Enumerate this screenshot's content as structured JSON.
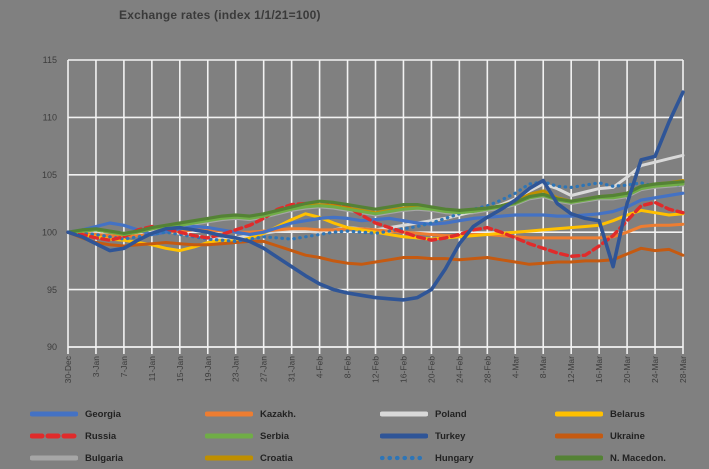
{
  "title": "Exchange rates (index 1/1/21=100)",
  "chart_data": {
    "type": "line",
    "title": "Exchange rates (index 1/1/21=100)",
    "ylim": [
      90,
      115
    ],
    "y_step": 5,
    "y_tick_labels": [
      "90",
      "95",
      "100",
      "105",
      "110",
      "115"
    ],
    "grid": "on",
    "legend_position": "bottom",
    "sample_step_days": 2,
    "tick_step_days": 4,
    "x_tick_labels": [
      "30-Dec",
      "3-Jan",
      "7-Jan",
      "11-Jan",
      "15-Jan",
      "19-Jan",
      "23-Jan",
      "27-Jan",
      "31-Jan",
      "4-Feb",
      "8-Feb",
      "12-Feb",
      "16-Feb",
      "20-Feb",
      "24-Feb",
      "28-Feb",
      "4-Mar",
      "8-Mar",
      "12-Mar",
      "16-Mar",
      "20-Mar",
      "24-Mar",
      "28-Mar"
    ],
    "x_sample_dates": [
      "30-Dec",
      "1-Jan",
      "3-Jan",
      "5-Jan",
      "7-Jan",
      "9-Jan",
      "11-Jan",
      "13-Jan",
      "15-Jan",
      "17-Jan",
      "19-Jan",
      "21-Jan",
      "23-Jan",
      "25-Jan",
      "27-Jan",
      "29-Jan",
      "31-Jan",
      "2-Feb",
      "4-Feb",
      "6-Feb",
      "8-Feb",
      "10-Feb",
      "12-Feb",
      "14-Feb",
      "16-Feb",
      "18-Feb",
      "20-Feb",
      "22-Feb",
      "24-Feb",
      "26-Feb",
      "28-Feb",
      "2-Mar",
      "4-Mar",
      "6-Mar",
      "8-Mar",
      "10-Mar",
      "12-Mar",
      "14-Mar",
      "16-Mar",
      "18-Mar",
      "20-Mar",
      "22-Mar",
      "24-Mar",
      "26-Mar",
      "28-Mar"
    ],
    "series": [
      {
        "name": "Bulgaria",
        "color": "#A6A6A6",
        "style": "solid",
        "width": 3,
        "values": [
          100,
          100.1,
          100.2,
          100,
          99.7,
          99.9,
          100.2,
          100.4,
          100.5,
          100.7,
          100.9,
          101.1,
          101.2,
          101.1,
          101.3,
          101.6,
          101.9,
          102.1,
          102.2,
          102.1,
          101.9,
          101.7,
          101.5,
          101.7,
          101.9,
          102,
          101.9,
          101.7,
          101.6,
          101.7,
          101.9,
          102.1,
          102.4,
          102.9,
          103.1,
          102.7,
          102.5,
          102.7,
          102.9,
          102.9,
          103.1,
          103.7,
          103.9,
          104,
          104.1
        ]
      },
      {
        "name": "Poland",
        "color": "#D9D9D9",
        "style": "solid",
        "width": 3,
        "values": [
          100,
          100,
          99.9,
          99.7,
          99.6,
          99.8,
          100,
          100.1,
          99.9,
          99.7,
          99.5,
          99.4,
          99.5,
          99.7,
          99.9,
          100.1,
          100.2,
          100.1,
          100,
          100.2,
          100.4,
          100.3,
          100.2,
          100.4,
          100.6,
          100.8,
          101,
          101.2,
          101.5,
          101.8,
          102,
          102.4,
          102.9,
          103.6,
          104.2,
          103.8,
          103.2,
          103.5,
          103.8,
          103.9,
          104.8,
          105.8,
          106.1,
          106.4,
          106.7
        ]
      },
      {
        "name": "Kazakh.",
        "color": "#ED7D31",
        "style": "solid",
        "width": 3,
        "values": [
          100,
          99.9,
          99.8,
          99.7,
          99.6,
          99.7,
          99.8,
          100,
          100.1,
          100.2,
          100.2,
          100.1,
          100,
          100,
          100.1,
          100.2,
          100.3,
          100.3,
          100.2,
          100.2,
          100.3,
          100.3,
          100.2,
          100.1,
          100,
          99.9,
          99.8,
          99.7,
          99.7,
          99.8,
          99.8,
          99.7,
          99.6,
          99.5,
          99.5,
          99.5,
          99.5,
          99.5,
          99.5,
          99.6,
          100,
          100.5,
          100.6,
          100.6,
          100.7
        ]
      },
      {
        "name": "Belarus",
        "color": "#FFC000",
        "style": "solid",
        "width": 3,
        "values": [
          100,
          99.8,
          99.6,
          99.4,
          99.3,
          99.1,
          98.9,
          98.6,
          98.4,
          98.7,
          99.1,
          99.3,
          99.2,
          99.5,
          99.9,
          100.5,
          101.1,
          101.6,
          101.3,
          100.8,
          100.4,
          100.2,
          100,
          99.8,
          99.6,
          99.5,
          99.4,
          99.5,
          99.6,
          99.7,
          99.8,
          99.9,
          100,
          100.1,
          100.2,
          100.3,
          100.4,
          100.5,
          100.6,
          101,
          101.5,
          101.9,
          101.7,
          101.5,
          101.6
        ]
      },
      {
        "name": "Ukraine",
        "color": "#C55A11",
        "style": "solid",
        "width": 3,
        "values": [
          100,
          99.5,
          99.1,
          98.9,
          98.8,
          98.9,
          99,
          99.1,
          99,
          98.9,
          98.9,
          99,
          99.1,
          99.2,
          99.2,
          98.8,
          98.4,
          98,
          97.8,
          97.5,
          97.3,
          97.2,
          97.4,
          97.6,
          97.8,
          97.8,
          97.7,
          97.7,
          97.6,
          97.7,
          97.8,
          97.6,
          97.4,
          97.2,
          97.3,
          97.4,
          97.4,
          97.5,
          97.5,
          97.6,
          98.1,
          98.6,
          98.4,
          98.5,
          98
        ]
      },
      {
        "name": "Georgia",
        "color": "#4472C4",
        "style": "solid",
        "width": 3.2,
        "values": [
          100,
          100.2,
          100.5,
          100.8,
          100.6,
          100.2,
          99.8,
          100,
          100.3,
          100.5,
          100.4,
          100.2,
          100,
          99.8,
          100,
          100.4,
          100.8,
          101,
          101.2,
          101.3,
          101.2,
          101,
          101.1,
          101.2,
          101,
          100.8,
          100.7,
          100.8,
          101,
          101.2,
          101.3,
          101.4,
          101.5,
          101.5,
          101.5,
          101.4,
          101.4,
          101.5,
          101.6,
          101.8,
          102.2,
          102.8,
          103,
          103.2,
          103.4
        ]
      },
      {
        "name": "Hungary",
        "color": "#2E75B6",
        "style": "dotted",
        "width": 3.2,
        "values": [
          100,
          99.9,
          99.8,
          99.6,
          99.4,
          99.6,
          99.8,
          100,
          99.8,
          99.6,
          99.4,
          99.3,
          99.2,
          99.4,
          99.6,
          99.5,
          99.4,
          99.6,
          99.8,
          100,
          100.1,
          100,
          99.9,
          100.1,
          100.3,
          100.5,
          100.8,
          101.2,
          101.6,
          102,
          102.3,
          102.8,
          103.4,
          104.2,
          104.4,
          104,
          103.9,
          104.1,
          104.3,
          104,
          104.1,
          104.3,
          104,
          104.2,
          104.1
        ]
      },
      {
        "name": "Russia",
        "color": "#E02B2B",
        "style": "dashed",
        "width": 3.4,
        "values": [
          100,
          99.8,
          99.5,
          99.3,
          99.6,
          100.2,
          100.5,
          100.3,
          100,
          99.7,
          99.5,
          99.8,
          100.2,
          100.6,
          101.2,
          102,
          102.4,
          102.5,
          102.3,
          102.4,
          102.2,
          101.5,
          100.8,
          100.4,
          100,
          99.6,
          99.3,
          99.5,
          99.8,
          100.2,
          100.4,
          100,
          99.5,
          99,
          98.6,
          98.2,
          97.9,
          98,
          98.8,
          99.7,
          101,
          102.3,
          102.6,
          102,
          101.7
        ]
      },
      {
        "name": "Croatia",
        "color": "#BF8F00",
        "style": "solid",
        "width": 3,
        "values": [
          100,
          100.1,
          100.2,
          100,
          99.8,
          100,
          100.3,
          100.6,
          100.7,
          100.9,
          101.1,
          101.3,
          101.4,
          101.3,
          101.5,
          101.8,
          102.1,
          102.3,
          102.4,
          102.3,
          102.1,
          101.9,
          101.7,
          101.9,
          102.1,
          102.2,
          102.1,
          101.9,
          101.8,
          101.9,
          102.1,
          102.3,
          102.7,
          103.3,
          103.6,
          103,
          102.7,
          102.9,
          103.1,
          103.2,
          103.4,
          104,
          104.2,
          104.3,
          104.5
        ]
      },
      {
        "name": "Serbia",
        "color": "#70AD47",
        "style": "solid",
        "width": 3,
        "values": [
          100,
          100.1,
          100.2,
          100,
          99.8,
          100,
          100.3,
          100.5,
          100.6,
          100.8,
          101,
          101.2,
          101.3,
          101.2,
          101.4,
          101.7,
          102,
          102.2,
          102.3,
          102.2,
          102,
          101.8,
          101.6,
          101.8,
          102,
          102.1,
          102,
          101.8,
          101.7,
          101.8,
          102,
          102.2,
          102.5,
          103,
          103.2,
          102.8,
          102.6,
          102.8,
          103,
          103,
          103.2,
          103.8,
          104,
          104.1,
          104.2
        ]
      },
      {
        "name": "N. Macedon.",
        "color": "#548235",
        "style": "solid",
        "width": 3.2,
        "values": [
          100,
          100.2,
          100.3,
          100.1,
          99.9,
          100.1,
          100.4,
          100.6,
          100.8,
          101,
          101.2,
          101.4,
          101.5,
          101.4,
          101.6,
          101.9,
          102.2,
          102.5,
          102.7,
          102.6,
          102.4,
          102.2,
          102,
          102.2,
          102.4,
          102.4,
          102.2,
          102,
          101.9,
          102,
          102.1,
          102.3,
          102.6,
          103.1,
          103.3,
          102.9,
          102.7,
          102.9,
          103.1,
          103.2,
          103.4,
          104,
          104.2,
          104.3,
          104.4
        ]
      },
      {
        "name": "Turkey",
        "color": "#2F5597",
        "style": "solid",
        "width": 3.6,
        "values": [
          100,
          99.6,
          99,
          98.4,
          98.6,
          99.3,
          99.9,
          100.3,
          100.4,
          100.2,
          100,
          99.7,
          99.5,
          99.2,
          98.6,
          97.8,
          97,
          96.2,
          95.5,
          95,
          94.7,
          94.5,
          94.3,
          94.2,
          94.1,
          94.3,
          95,
          96.8,
          99,
          100.5,
          101.3,
          102,
          102.8,
          103.8,
          104.5,
          102.5,
          101.6,
          101.2,
          101,
          97,
          102.5,
          106.3,
          106.6,
          109.6,
          112.2
        ]
      }
    ]
  },
  "legend": {
    "items": [
      {
        "label": "Georgia",
        "series_index": 5
      },
      {
        "label": "Kazakh.",
        "series_index": 2
      },
      {
        "label": "Poland",
        "series_index": 1
      },
      {
        "label": "Belarus",
        "series_index": 3
      },
      {
        "label": "Russia",
        "series_index": 7
      },
      {
        "label": "Serbia",
        "series_index": 9
      },
      {
        "label": "Turkey",
        "series_index": 11
      },
      {
        "label": "Ukraine",
        "series_index": 4
      },
      {
        "label": "Bulgaria",
        "series_index": 0
      },
      {
        "label": "Croatia",
        "series_index": 8
      },
      {
        "label": "Hungary",
        "series_index": 6
      },
      {
        "label": "N. Macedon.",
        "series_index": 10
      }
    ]
  },
  "colors": {
    "background": "#808080",
    "gridline": "#F2F2F2",
    "axis_text": "#3C3C3C",
    "title_text": "#3A3A3A"
  }
}
